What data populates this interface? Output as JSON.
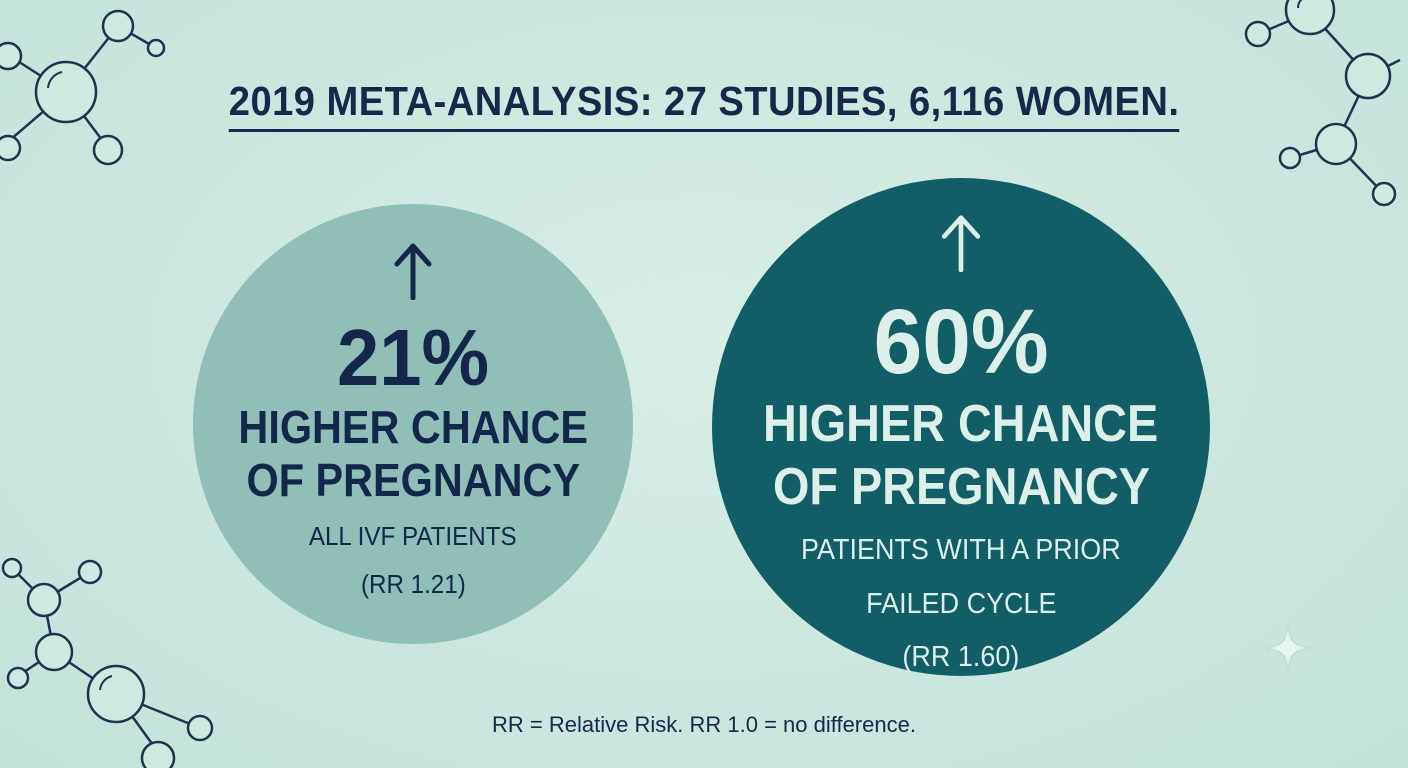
{
  "headline": "2019 META-ANALYSIS: 27 STUDIES, 6,116 WOMEN.",
  "left_stat": {
    "icon": "arrow-up-icon",
    "percent": "21%",
    "line1": "HIGHER CHANCE",
    "line2": "OF PREGNANCY",
    "group_line1": "ALL IVF PATIENTS",
    "ratio": "(RR 1.21)",
    "color": "#8fbfb7",
    "text_color": "#14264a"
  },
  "right_stat": {
    "icon": "arrow-up-icon",
    "percent": "60%",
    "line1": "HIGHER CHANCE",
    "line2": "OF PREGNANCY",
    "group_line1": "PATIENTS WITH A PRIOR",
    "group_line2": "FAILED CYCLE",
    "ratio": "(RR 1.60)",
    "color": "#115e66",
    "text_color": "#dcefe9"
  },
  "footnote": "RR = Relative Risk. RR 1.0 = no difference.",
  "colors": {
    "background": "#cfe8e0",
    "ink": "#15294a",
    "molecule": "#1d3350"
  },
  "decorations": [
    "molecule-icon",
    "molecule-icon",
    "molecule-icon",
    "sparkle-icon"
  ]
}
